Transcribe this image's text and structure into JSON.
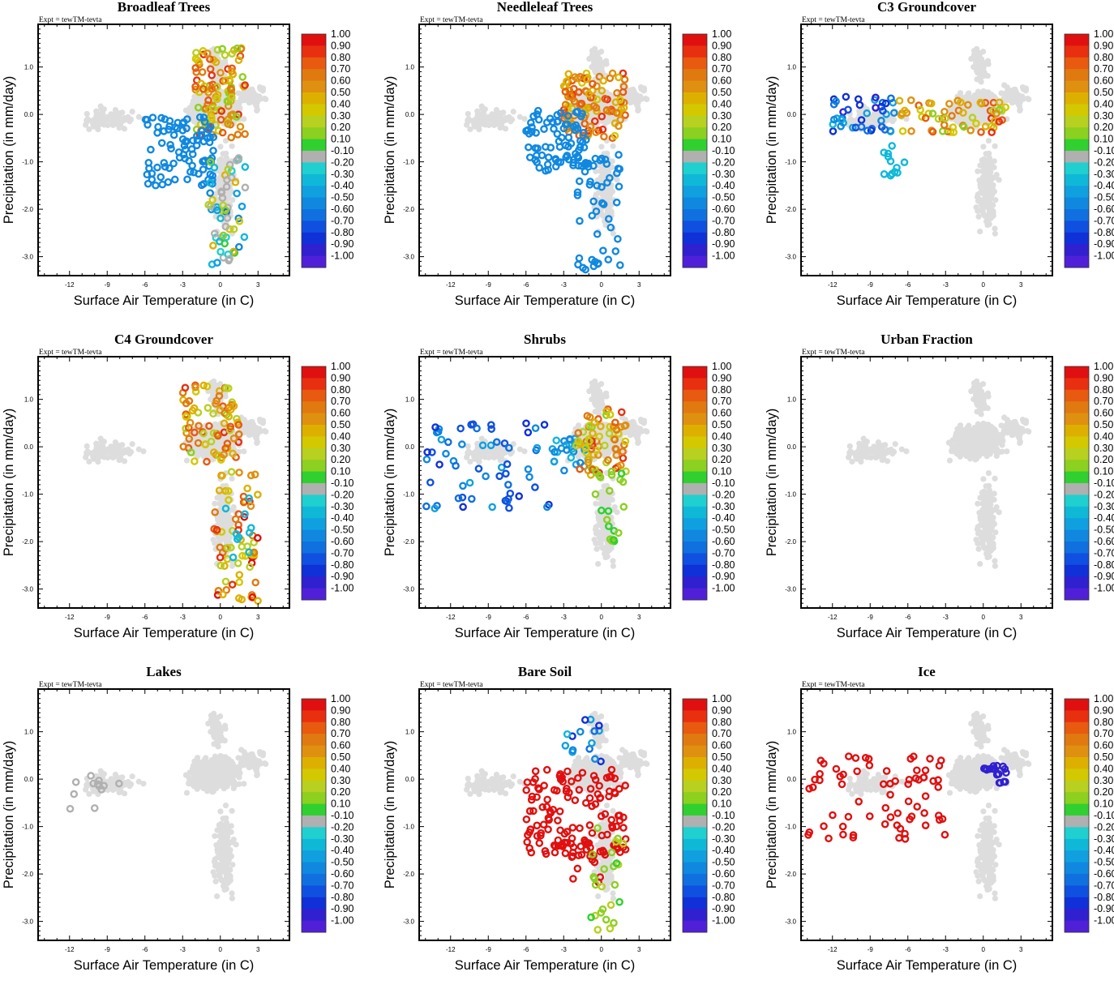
{
  "figure": {
    "expt_label": "Expt = tewTM-tevta"
  },
  "colors": {
    "background_points": "#dddddd",
    "grey_class": "#b0b0b0",
    "scale": [
      "#e01010",
      "#e83010",
      "#e85a10",
      "#e07a10",
      "#e09010",
      "#ddb000",
      "#d4c800",
      "#b8d020",
      "#8cd020",
      "#30d030",
      "#b0b0b0",
      "#20d0d0",
      "#10b8d8",
      "#10a0e0",
      "#1088e0",
      "#1070e0",
      "#1050e0",
      "#1030d8",
      "#3020d0",
      "#5020d8",
      "#7820e0"
    ]
  },
  "chart_data": [
    {
      "type": "scatter",
      "id": "broadleaf",
      "title": "Broadleaf Trees",
      "xlabel": "Surface Air Temperature (in C)",
      "ylabel": "Precipitation (in mm/day)",
      "xlim": [
        -14.5,
        5.5
      ],
      "ylim": [
        -3.4,
        1.9
      ],
      "xticks": [
        "-12",
        "-9",
        "-6",
        "-3",
        "0",
        "3"
      ],
      "yticks": [
        "-3.0",
        "-2.0",
        "-1.0",
        "0.0",
        "1.0"
      ],
      "colorbar_labels": [
        "1.00",
        "0.90",
        "0.80",
        "0.70",
        "0.60",
        "0.50",
        "0.40",
        "0.30",
        "0.20",
        "0.10",
        "-0.10",
        "-0.20",
        "-0.30",
        "-0.40",
        "-0.50",
        "-0.60",
        "-0.70",
        "-0.80",
        "-0.90",
        "-1.00"
      ],
      "colored_clusters": [
        {
          "x": [
            -2,
            2
          ],
          "y": [
            -0.5,
            1.4
          ],
          "values": [
            0.2,
            0.9
          ],
          "count": 110
        },
        {
          "x": [
            -6,
            -0.5
          ],
          "y": [
            -1.5,
            0.0
          ],
          "values": [
            -0.55,
            -0.45
          ],
          "count": 90
        },
        {
          "x": [
            -1,
            2
          ],
          "y": [
            -3.2,
            -0.8
          ],
          "values": [
            -0.6,
            0.5
          ],
          "count": 60
        }
      ]
    },
    {
      "type": "scatter",
      "id": "needleleaf",
      "title": "Needleleaf Trees",
      "xlabel": "Surface Air Temperature (in C)",
      "ylabel": "Precipitation (in mm/day)",
      "xlim": [
        -14.5,
        5.5
      ],
      "ylim": [
        -3.4,
        1.9
      ],
      "xticks": [
        "-12",
        "-9",
        "-6",
        "-3",
        "0",
        "3"
      ],
      "yticks": [
        "-3.0",
        "-2.0",
        "-1.0",
        "0.0",
        "1.0"
      ],
      "colorbar_labels": [
        "1.00",
        "0.90",
        "0.80",
        "0.70",
        "0.60",
        "0.50",
        "0.40",
        "0.30",
        "0.20",
        "0.10",
        "-0.10",
        "-0.20",
        "-0.30",
        "-0.40",
        "-0.50",
        "-0.60",
        "-0.70",
        "-0.80",
        "-0.90",
        "-1.00"
      ],
      "colored_clusters": [
        {
          "x": [
            -3,
            2
          ],
          "y": [
            -0.5,
            0.9
          ],
          "values": [
            0.4,
            0.9
          ],
          "count": 110
        },
        {
          "x": [
            -6,
            -1
          ],
          "y": [
            -1.2,
            0.1
          ],
          "values": [
            -0.55,
            -0.45
          ],
          "count": 80
        },
        {
          "x": [
            -2,
            1.5
          ],
          "y": [
            -3.3,
            -0.8
          ],
          "values": [
            -0.55,
            -0.45
          ],
          "count": 50
        }
      ]
    },
    {
      "type": "scatter",
      "id": "c3",
      "title": "C3 Groundcover",
      "xlabel": "Surface Air Temperature (in C)",
      "ylabel": "Precipitation (in mm/day)",
      "xlim": [
        -14.5,
        5.5
      ],
      "ylim": [
        -3.4,
        1.9
      ],
      "xticks": [
        "-12",
        "-9",
        "-6",
        "-3",
        "0",
        "3"
      ],
      "yticks": [
        "-3.0",
        "-2.0",
        "-1.0",
        "0.0",
        "1.0"
      ],
      "colorbar_labels": [
        "1.00",
        "0.90",
        "0.80",
        "0.70",
        "0.60",
        "0.50",
        "0.40",
        "0.30",
        "0.20",
        "0.10",
        "-0.10",
        "-0.20",
        "-0.30",
        "-0.40",
        "-0.50",
        "-0.60",
        "-0.70",
        "-0.80",
        "-0.90",
        "-1.00"
      ],
      "colored_clusters": [
        {
          "x": [
            -12,
            -7
          ],
          "y": [
            -0.4,
            0.4
          ],
          "values": [
            -0.9,
            -0.3
          ],
          "count": 40
        },
        {
          "x": [
            -7,
            2
          ],
          "y": [
            -0.4,
            0.3
          ],
          "values": [
            0.2,
            0.9
          ],
          "count": 60
        },
        {
          "x": [
            -8,
            -6
          ],
          "y": [
            -1.3,
            -0.5
          ],
          "values": [
            -0.3,
            -0.25
          ],
          "count": 12
        }
      ]
    },
    {
      "type": "scatter",
      "id": "c4",
      "title": "C4 Groundcover",
      "xlabel": "Surface Air Temperature (in C)",
      "ylabel": "Precipitation (in mm/day)",
      "xlim": [
        -14.5,
        5.5
      ],
      "ylim": [
        -3.4,
        1.9
      ],
      "xticks": [
        "-12",
        "-9",
        "-6",
        "-3",
        "0",
        "3"
      ],
      "yticks": [
        "-3.0",
        "-2.0",
        "-1.0",
        "0.0",
        "1.0"
      ],
      "colorbar_labels": [
        "1.00",
        "0.90",
        "0.80",
        "0.70",
        "0.60",
        "0.50",
        "0.40",
        "0.30",
        "0.20",
        "0.10",
        "-0.10",
        "-0.20",
        "-0.30",
        "-0.40",
        "-0.50",
        "-0.60",
        "-0.70",
        "-0.80",
        "-0.90",
        "-1.00"
      ],
      "colored_clusters": [
        {
          "x": [
            -3,
            1.5
          ],
          "y": [
            -0.4,
            1.3
          ],
          "values": [
            0.2,
            0.9
          ],
          "count": 80
        },
        {
          "x": [
            -0.5,
            3
          ],
          "y": [
            -3.3,
            -0.5
          ],
          "values": [
            0.3,
            1.0
          ],
          "count": 70
        },
        {
          "x": [
            0,
            3
          ],
          "y": [
            -3.0,
            -1.0
          ],
          "values": [
            -0.3,
            -0.25
          ],
          "count": 10
        }
      ]
    },
    {
      "type": "scatter",
      "id": "shrubs",
      "title": "Shrubs",
      "xlabel": "Surface Air Temperature (in C)",
      "ylabel": "Precipitation (in mm/day)",
      "xlim": [
        -14.5,
        5.5
      ],
      "ylim": [
        -3.4,
        1.9
      ],
      "xticks": [
        "-12",
        "-9",
        "-6",
        "-3",
        "0",
        "3"
      ],
      "yticks": [
        "-3.0",
        "-2.0",
        "-1.0",
        "0.0",
        "1.0"
      ],
      "colorbar_labels": [
        "1.00",
        "0.90",
        "0.80",
        "0.70",
        "0.60",
        "0.50",
        "0.40",
        "0.30",
        "0.20",
        "0.10",
        "-0.10",
        "-0.20",
        "-0.30",
        "-0.40",
        "-0.50",
        "-0.60",
        "-0.70",
        "-0.80",
        "-0.90",
        "-1.00"
      ],
      "colored_clusters": [
        {
          "x": [
            -14,
            -4
          ],
          "y": [
            -1.3,
            0.5
          ],
          "values": [
            -0.8,
            -0.4
          ],
          "count": 60
        },
        {
          "x": [
            -4,
            -1
          ],
          "y": [
            -0.5,
            0.3
          ],
          "values": [
            -0.5,
            -0.3
          ],
          "count": 25
        },
        {
          "x": [
            -2,
            2
          ],
          "y": [
            -0.6,
            0.8
          ],
          "values": [
            0.2,
            0.9
          ],
          "count": 70
        },
        {
          "x": [
            -0.5,
            2
          ],
          "y": [
            -2.0,
            -0.5
          ],
          "values": [
            0.1,
            0.2
          ],
          "count": 20
        }
      ]
    },
    {
      "type": "scatter",
      "id": "urban",
      "title": "Urban Fraction",
      "xlabel": "Surface Air Temperature (in C)",
      "ylabel": "Precipitation (in mm/day)",
      "xlim": [
        -14.5,
        5.5
      ],
      "ylim": [
        -3.4,
        1.9
      ],
      "xticks": [
        "-12",
        "-9",
        "-6",
        "-3",
        "0",
        "3"
      ],
      "yticks": [
        "-3.0",
        "-2.0",
        "-1.0",
        "0.0",
        "1.0"
      ],
      "colorbar_labels": [
        "1.00",
        "0.90",
        "0.80",
        "0.70",
        "0.60",
        "0.50",
        "0.40",
        "0.30",
        "0.20",
        "0.10",
        "-0.10",
        "-0.20",
        "-0.30",
        "-0.40",
        "-0.50",
        "-0.60",
        "-0.70",
        "-0.80",
        "-0.90",
        "-1.00"
      ],
      "colored_clusters": []
    },
    {
      "type": "scatter",
      "id": "lakes",
      "title": "Lakes",
      "xlabel": "Surface Air Temperature (in C)",
      "ylabel": "Precipitation (in mm/day)",
      "xlim": [
        -14.5,
        5.5
      ],
      "ylim": [
        -3.4,
        1.9
      ],
      "xticks": [
        "-12",
        "-9",
        "-6",
        "-3",
        "0",
        "3"
      ],
      "yticks": [
        "-3.0",
        "-2.0",
        "-1.0",
        "0.0",
        "1.0"
      ],
      "colorbar_labels": [
        "1.00",
        "0.90",
        "0.80",
        "0.70",
        "0.60",
        "0.50",
        "0.40",
        "0.30",
        "0.20",
        "0.10",
        "-0.10",
        "-0.20",
        "-0.30",
        "-0.40",
        "-0.50",
        "-0.60",
        "-0.70",
        "-0.80",
        "-0.90",
        "-1.00"
      ],
      "colored_clusters": [
        {
          "x": [
            -12,
            -8
          ],
          "y": [
            -0.7,
            0.1
          ],
          "values": [
            0.0,
            0.0
          ],
          "count": 12
        }
      ]
    },
    {
      "type": "scatter",
      "id": "baresoil",
      "title": "Bare Soil",
      "xlabel": "Surface Air Temperature (in C)",
      "ylabel": "Precipitation (in mm/day)",
      "xlim": [
        -14.5,
        5.5
      ],
      "ylim": [
        -3.4,
        1.9
      ],
      "xticks": [
        "-12",
        "-9",
        "-6",
        "-3",
        "0",
        "3"
      ],
      "yticks": [
        "-3.0",
        "-2.0",
        "-1.0",
        "0.0",
        "1.0"
      ],
      "colorbar_labels": [
        "1.00",
        "0.90",
        "0.80",
        "0.70",
        "0.60",
        "0.50",
        "0.40",
        "0.30",
        "0.20",
        "0.10",
        "-0.10",
        "-0.20",
        "-0.30",
        "-0.40",
        "-0.50",
        "-0.60",
        "-0.70",
        "-0.80",
        "-0.90",
        "-1.00"
      ],
      "colored_clusters": [
        {
          "x": [
            -6,
            2
          ],
          "y": [
            -1.6,
            0.2
          ],
          "values": [
            0.95,
            1.0
          ],
          "count": 130
        },
        {
          "x": [
            -2.5,
            0
          ],
          "y": [
            -2.3,
            -1.3
          ],
          "values": [
            0.95,
            1.0
          ],
          "count": 20
        },
        {
          "x": [
            -1,
            2
          ],
          "y": [
            -3.2,
            -1.0
          ],
          "values": [
            0.1,
            0.3
          ],
          "count": 25
        },
        {
          "x": [
            -3,
            0
          ],
          "y": [
            0.3,
            1.3
          ],
          "values": [
            -0.8,
            -0.3
          ],
          "count": 15
        }
      ]
    },
    {
      "type": "scatter",
      "id": "ice",
      "title": "Ice",
      "xlabel": "Surface Air Temperature (in C)",
      "ylabel": "Precipitation (in mm/day)",
      "xlim": [
        -14.5,
        5.5
      ],
      "ylim": [
        -3.4,
        1.9
      ],
      "xticks": [
        "-12",
        "-9",
        "-6",
        "-3",
        "0",
        "3"
      ],
      "yticks": [
        "-3.0",
        "-2.0",
        "-1.0",
        "0.0",
        "1.0"
      ],
      "colorbar_labels": [
        "1.00",
        "0.90",
        "0.80",
        "0.70",
        "0.60",
        "0.50",
        "0.40",
        "0.30",
        "0.20",
        "0.10",
        "-0.10",
        "-0.20",
        "-0.30",
        "-0.40",
        "-0.50",
        "-0.60",
        "-0.70",
        "-0.80",
        "-0.90",
        "-1.00"
      ],
      "colored_clusters": [
        {
          "x": [
            -14,
            -3
          ],
          "y": [
            -1.3,
            0.5
          ],
          "values": [
            0.95,
            1.0
          ],
          "count": 70
        },
        {
          "x": [
            0,
            2
          ],
          "y": [
            -0.1,
            0.3
          ],
          "values": [
            -0.95,
            -0.85
          ],
          "count": 18
        }
      ]
    }
  ]
}
